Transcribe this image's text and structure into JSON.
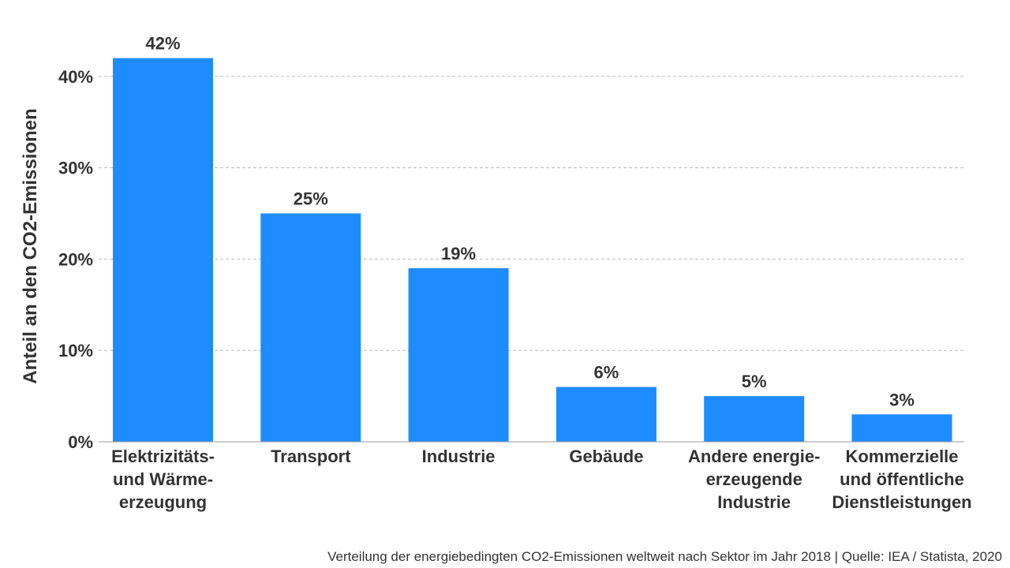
{
  "chart_data": {
    "type": "bar",
    "categories": [
      "Elektrizitäts- und Wärme- erzeugung",
      "Transport",
      "Industrie",
      "Gebäude",
      "Andere energie- erzeugende Industrie",
      "Kommerzielle und öffentliche Dienstleistungen"
    ],
    "category_lines": [
      [
        "Elektrizitäts-",
        "und Wärme-",
        "erzeugung"
      ],
      [
        "Transport"
      ],
      [
        "Industrie"
      ],
      [
        "Gebäude"
      ],
      [
        "Andere energie-",
        "erzeugende",
        "Industrie"
      ],
      [
        "Kommerzielle",
        "und öffentliche",
        "Dienstleistungen"
      ]
    ],
    "values": [
      42,
      25,
      19,
      6,
      5,
      3
    ],
    "data_labels": [
      "42%",
      "25%",
      "19%",
      "6%",
      "5%",
      "3%"
    ],
    "ylabel": "Anteil an den CO2-Emissionen",
    "xlabel": "",
    "ylim": [
      0,
      40
    ],
    "yticks": [
      0,
      10,
      20,
      30,
      40
    ],
    "ytick_labels": [
      "0%",
      "10%",
      "20%",
      "30%",
      "40%"
    ],
    "grid": true,
    "bar_color": "#1e8cff",
    "grid_color": "#bbbbbb",
    "text_color": "#333333"
  },
  "footer": {
    "source": "Verteilung der energiebedingten CO2-Emissionen weltweit nach Sektor im Jahr 2018 | Quelle: IEA / Statista, 2020"
  }
}
